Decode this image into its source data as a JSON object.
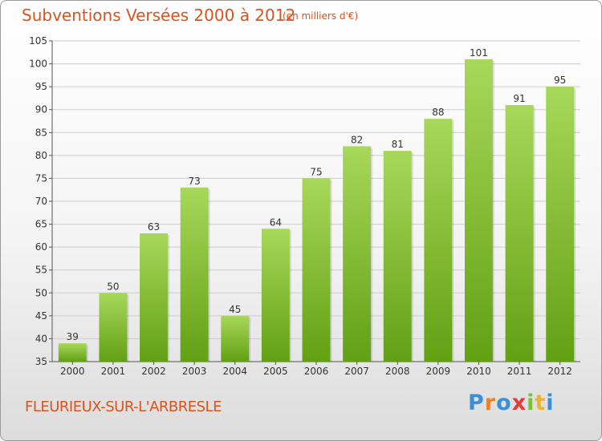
{
  "header": {
    "title": "Subventions Versées 2000 à 2012",
    "subtitle": "(en milliers d'€)"
  },
  "footer": {
    "place": "FLEURIEUX-SUR-L'ARBRESLE",
    "logo_letters": [
      {
        "ch": "P",
        "color": "#3a8fd6"
      },
      {
        "ch": "r",
        "color": "#e8832a"
      },
      {
        "ch": "o",
        "color": "#3a8fd6"
      },
      {
        "ch": "x",
        "color": "#e23b3b"
      },
      {
        "ch": "i",
        "color": "#7bbf3a"
      },
      {
        "ch": "t",
        "color": "#f0b323"
      },
      {
        "ch": "i",
        "color": "#3a8fd6"
      }
    ]
  },
  "colors": {
    "accent": "#d9541e",
    "bar_light": "#a8d85a",
    "bar_dark": "#62a014",
    "grid": "#cccccc"
  },
  "chart_data": {
    "type": "bar",
    "title": "Subventions Versées 2000 à 2012",
    "subtitle": "(en milliers d'€)",
    "xlabel": "",
    "ylabel": "",
    "categories": [
      "2000",
      "2001",
      "2002",
      "2003",
      "2004",
      "2005",
      "2006",
      "2007",
      "2008",
      "2009",
      "2010",
      "2011",
      "2012"
    ],
    "values": [
      39,
      50,
      63,
      73,
      45,
      64,
      75,
      82,
      81,
      88,
      101,
      91,
      95
    ],
    "ylim": [
      35,
      105
    ],
    "yticks": [
      35,
      40,
      45,
      50,
      55,
      60,
      65,
      70,
      75,
      80,
      85,
      90,
      95,
      100,
      105
    ],
    "grid": true,
    "data_labels": true
  }
}
